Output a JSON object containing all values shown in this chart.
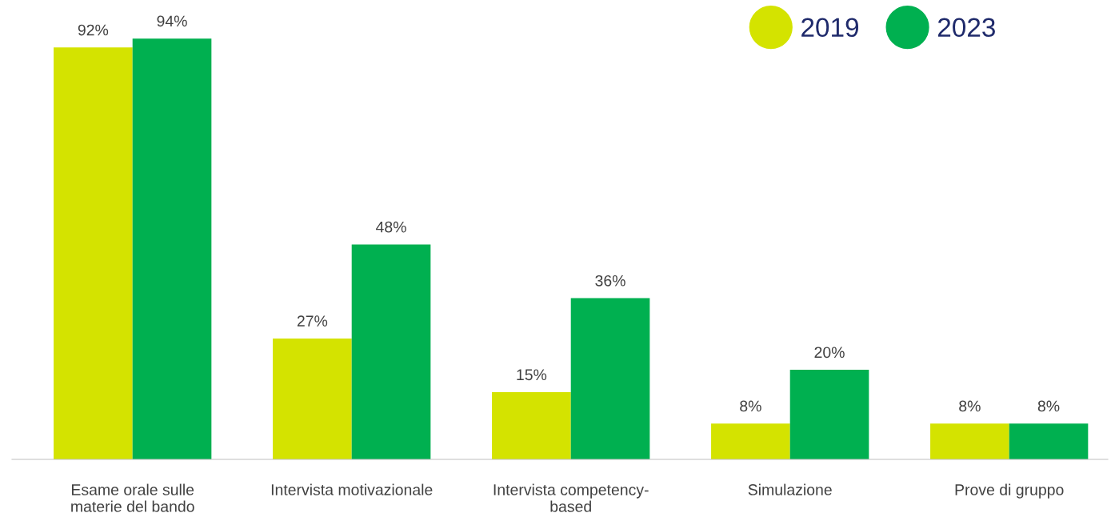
{
  "chart_data": {
    "type": "bar",
    "categories": [
      "Esame orale sulle\nmaterie del bando",
      "Intervista motivazionale",
      "Intervista competency-\nbased",
      "Simulazione",
      "Prove di gruppo"
    ],
    "series": [
      {
        "name": "2019",
        "color": "#d4e300",
        "values": [
          92,
          27,
          15,
          8,
          8
        ],
        "value_labels": [
          "92%",
          "27%",
          "15%",
          "8%",
          "8%"
        ]
      },
      {
        "name": "2023",
        "color": "#00b050",
        "values": [
          94,
          48,
          36,
          20,
          8
        ],
        "value_labels": [
          "94%",
          "48%",
          "36%",
          "20%",
          "8%"
        ]
      }
    ],
    "legend": "top right",
    "grid": false
  }
}
